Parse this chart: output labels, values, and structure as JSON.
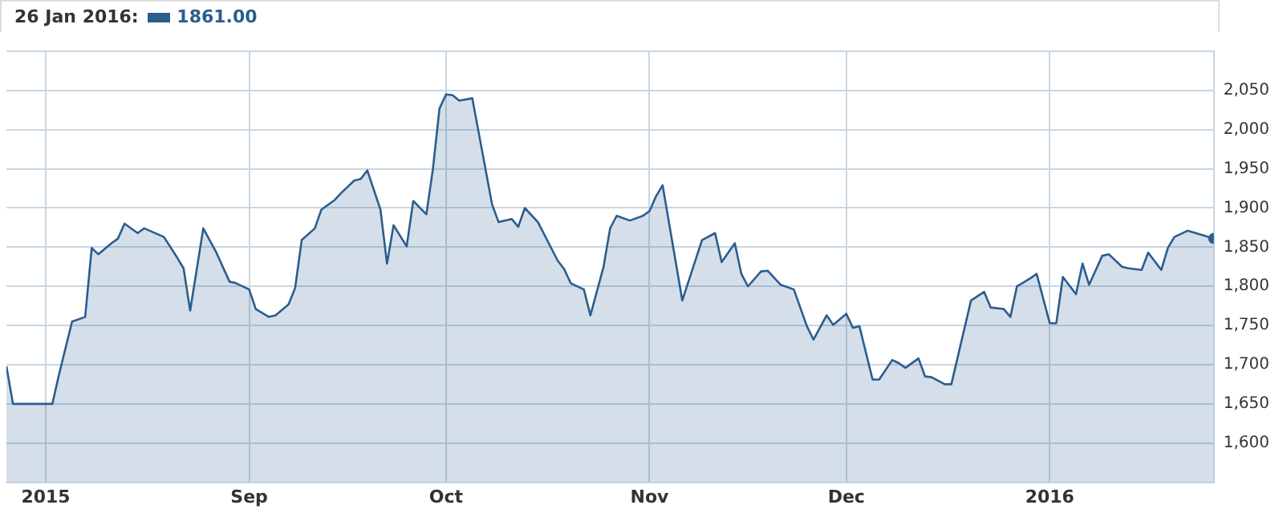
{
  "chart_data": {
    "type": "area",
    "title": "26 Jan 2016:",
    "subtitle": "1861.00",
    "x": [
      "2015-07-26",
      "2015-07-27",
      "2015-08-02",
      "2015-08-03",
      "2015-08-05",
      "2015-08-07",
      "2015-08-08",
      "2015-08-09",
      "2015-08-11",
      "2015-08-12",
      "2015-08-13",
      "2015-08-15",
      "2015-08-16",
      "2015-08-19",
      "2015-08-21",
      "2015-08-22",
      "2015-08-23",
      "2015-08-25",
      "2015-08-27",
      "2015-08-29",
      "2015-08-30",
      "2015-09-01",
      "2015-09-02",
      "2015-09-04",
      "2015-09-05",
      "2015-09-07",
      "2015-09-08",
      "2015-09-09",
      "2015-09-11",
      "2015-09-12",
      "2015-09-14",
      "2015-09-15",
      "2015-09-17",
      "2015-09-18",
      "2015-09-19",
      "2015-09-21",
      "2015-09-22",
      "2015-09-23",
      "2015-09-25",
      "2015-09-26",
      "2015-09-28",
      "2015-09-29",
      "2015-09-30",
      "2015-10-01",
      "2015-10-02",
      "2015-10-03",
      "2015-10-05",
      "2015-10-06",
      "2015-10-08",
      "2015-10-09",
      "2015-10-11",
      "2015-10-12",
      "2015-10-13",
      "2015-10-15",
      "2015-10-18",
      "2015-10-19",
      "2015-10-20",
      "2015-10-22",
      "2015-10-23",
      "2015-10-25",
      "2015-10-26",
      "2015-10-27",
      "2015-10-29",
      "2015-10-31",
      "2015-11-01",
      "2015-11-02",
      "2015-11-03",
      "2015-11-06",
      "2015-11-09",
      "2015-11-11",
      "2015-11-12",
      "2015-11-14",
      "2015-11-15",
      "2015-11-16",
      "2015-11-18",
      "2015-11-19",
      "2015-11-21",
      "2015-11-23",
      "2015-11-25",
      "2015-11-26",
      "2015-11-28",
      "2015-11-29",
      "2015-12-01",
      "2015-12-02",
      "2015-12-03",
      "2015-12-05",
      "2015-12-06",
      "2015-12-08",
      "2015-12-09",
      "2015-12-10",
      "2015-12-12",
      "2015-12-13",
      "2015-12-14",
      "2015-12-16",
      "2015-12-17",
      "2015-12-20",
      "2015-12-22",
      "2015-12-23",
      "2015-12-25",
      "2015-12-26",
      "2015-12-27",
      "2015-12-29",
      "2015-12-30",
      "2016-01-01",
      "2016-01-02",
      "2016-01-03",
      "2016-01-05",
      "2016-01-06",
      "2016-01-07",
      "2016-01-09",
      "2016-01-10",
      "2016-01-12",
      "2016-01-13",
      "2016-01-15",
      "2016-01-16",
      "2016-01-18",
      "2016-01-19",
      "2016-01-20",
      "2016-01-22",
      "2016-01-26"
    ],
    "series": [
      {
        "color": "#2b5d8f",
        "values": [
          1698,
          1650,
          1650,
          1687,
          1755,
          1761,
          1849,
          1841,
          1855,
          1861,
          1880,
          1868,
          1874,
          1863,
          1837,
          1823,
          1769,
          1874,
          1843,
          1806,
          1804,
          1796,
          1771,
          1761,
          1763,
          1777,
          1798,
          1859,
          1874,
          1898,
          1910,
          1919,
          1935,
          1937,
          1948,
          1898,
          1829,
          1878,
          1851,
          1909,
          1892,
          1950,
          2027,
          2045,
          2044,
          2037,
          2040,
          1995,
          1905,
          1882,
          1886,
          1876,
          1900,
          1882,
          1833,
          1822,
          1804,
          1796,
          1763,
          1825,
          1874,
          1890,
          1884,
          1890,
          1896,
          1915,
          1929,
          1782,
          1859,
          1868,
          1831,
          1855,
          1816,
          1800,
          1819,
          1820,
          1802,
          1796,
          1749,
          1732,
          1763,
          1751,
          1765,
          1747,
          1749,
          1681,
          1681,
          1706,
          1702,
          1696,
          1708,
          1685,
          1684,
          1675,
          1675,
          1782,
          1793,
          1773,
          1771,
          1761,
          1800,
          1810,
          1816,
          1753,
          1753,
          1812,
          1790,
          1829,
          1802,
          1839,
          1841,
          1825,
          1823,
          1821,
          1843,
          1821,
          1849,
          1863,
          1871,
          1861
        ]
      }
    ],
    "xlim": [
      "2015-07-26",
      "2016-01-26"
    ],
    "xticks": [
      {
        "value": "2015-08-01",
        "label": "2015"
      },
      {
        "value": "2015-09-01",
        "label": "Sep"
      },
      {
        "value": "2015-10-01",
        "label": "Oct"
      },
      {
        "value": "2015-11-01",
        "label": "Nov"
      },
      {
        "value": "2015-12-01",
        "label": "Dec"
      },
      {
        "value": "2016-01-01",
        "label": "2016"
      }
    ],
    "ylim": [
      1550,
      2100
    ],
    "yticks": [
      {
        "value": 1550,
        "label": null
      },
      {
        "value": 1600,
        "label": "1,600"
      },
      {
        "value": 1650,
        "label": "1,650"
      },
      {
        "value": 1700,
        "label": "1,700"
      },
      {
        "value": 1750,
        "label": "1,750"
      },
      {
        "value": 1800,
        "label": "1,800"
      },
      {
        "value": 1850,
        "label": "1,850"
      },
      {
        "value": 1900,
        "label": "1,900"
      },
      {
        "value": 1950,
        "label": "1,950"
      },
      {
        "value": 2000,
        "label": "2,000"
      },
      {
        "value": 2050,
        "label": "2,050"
      },
      {
        "value": 2100,
        "label": null
      }
    ],
    "grid": true
  }
}
